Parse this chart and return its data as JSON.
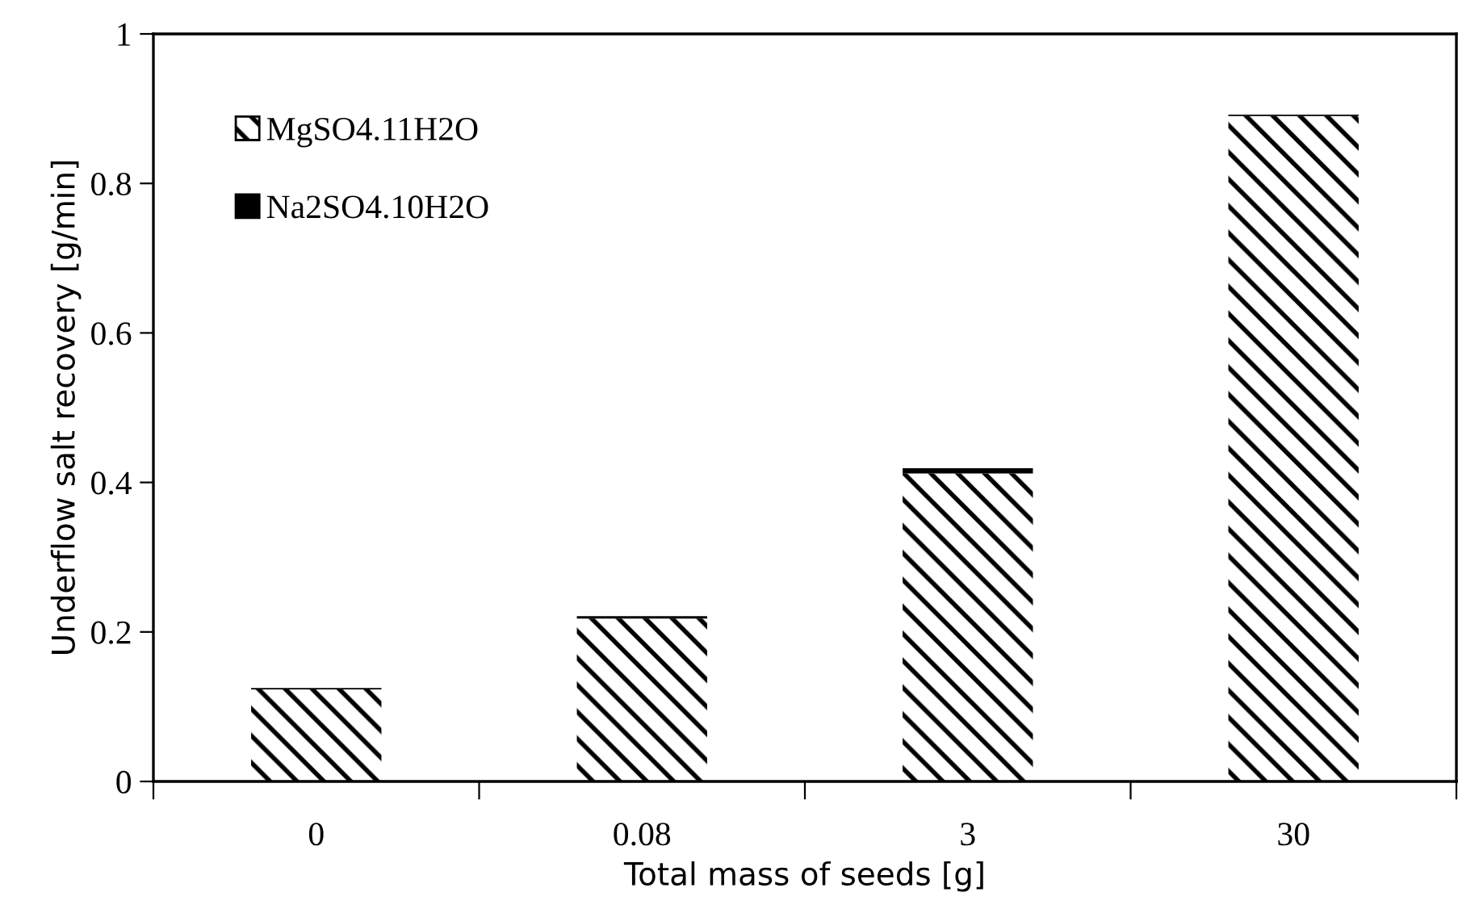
{
  "chart_data": {
    "type": "bar",
    "stacked": true,
    "xlabel": "Total mass of seeds [g]",
    "ylabel": "Underflow salt recovery [g/min]",
    "categories": [
      "0",
      "0.08",
      "3",
      "30"
    ],
    "series": [
      {
        "name": "MgSO4.11H2O",
        "color": "#ffffff",
        "values": [
          0.123,
          0.218,
          0.412,
          0.89
        ]
      },
      {
        "name": "Na2SO4.10H2O",
        "color": "#000000",
        "values": [
          0.002,
          0.003,
          0.007,
          0.002
        ]
      }
    ],
    "ylim": [
      0,
      1
    ],
    "yticks": [
      0,
      0.2,
      0.4,
      0.6,
      0.8,
      1
    ],
    "grid": false,
    "legend": "top left"
  }
}
